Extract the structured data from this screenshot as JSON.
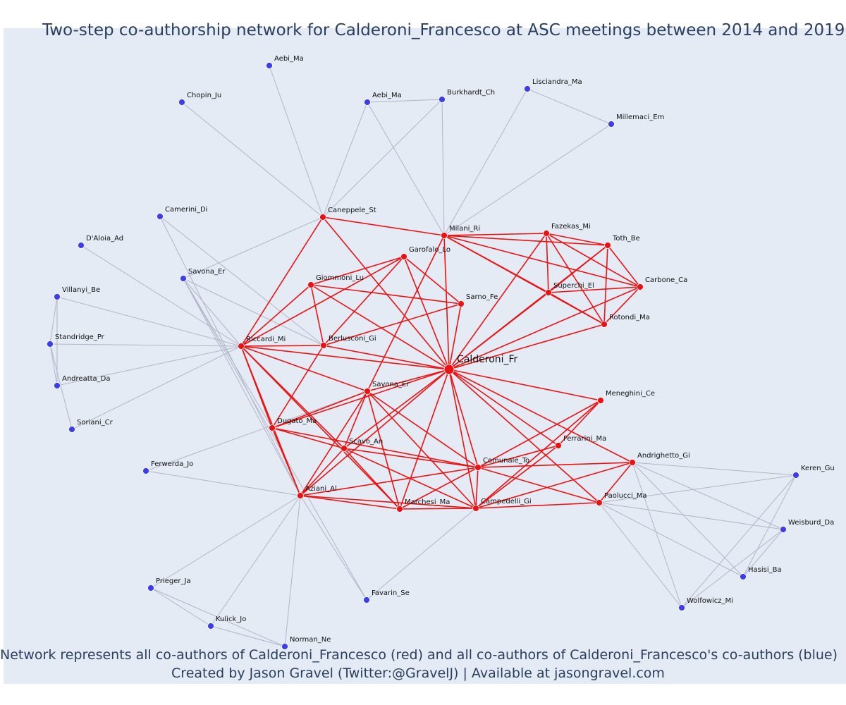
{
  "title": "Two-step co-authorship network for Calderoni_Francesco at ASC meetings between 2014 and 2019",
  "caption_line1": "Network represents all co-authors of Calderoni_Francesco (red) and all co-authors of Calderoni_Francesco's co-authors (blue)",
  "caption_line2": "Created by Jason Gravel (Twitter:@GravelJ) | Available at jasongravel.com",
  "colors": {
    "background": "#e5ebf5",
    "first_degree": "#ee1111",
    "second_degree": "#3c3cf0",
    "first_edge": "#ee1111",
    "second_edge": "#b4b4c8",
    "text": "#2a3f5f"
  },
  "nodes": [
    {
      "id": "Calderoni_Fr",
      "group": "ego"
    },
    {
      "id": "Caneppele_St",
      "group": "red"
    },
    {
      "id": "Milani_Ri",
      "group": "red"
    },
    {
      "id": "Fazekas_Mi",
      "group": "red"
    },
    {
      "id": "Toth_Be",
      "group": "red"
    },
    {
      "id": "Carbone_Ca",
      "group": "red"
    },
    {
      "id": "Superchi_El",
      "group": "red"
    },
    {
      "id": "Rotondi_Ma",
      "group": "red"
    },
    {
      "id": "Garofalo_Lo",
      "group": "red"
    },
    {
      "id": "Giommoni_Lu",
      "group": "red"
    },
    {
      "id": "Sarno_Fe",
      "group": "red"
    },
    {
      "id": "Berlusconi_Gi",
      "group": "red"
    },
    {
      "id": "Riccardi_Mi",
      "group": "red"
    },
    {
      "id": "Savona_Er",
      "group": "red"
    },
    {
      "id": "Dugato_Ma",
      "group": "red"
    },
    {
      "id": "Scavo_An",
      "group": "red"
    },
    {
      "id": "Aziani_Al",
      "group": "red"
    },
    {
      "id": "Marchesi_Ma",
      "group": "red"
    },
    {
      "id": "Campedelli_Gi",
      "group": "red"
    },
    {
      "id": "Comunale_To",
      "group": "red"
    },
    {
      "id": "Ferrarini_Ma",
      "group": "red"
    },
    {
      "id": "Meneghini_Ce",
      "group": "red"
    },
    {
      "id": "Andrighetto_Gi",
      "group": "red"
    },
    {
      "id": "Paolucci_Ma",
      "group": "red"
    },
    {
      "id": "Aebi_Ma",
      "group": "blue",
      "key": "Aebi_Ma_1"
    },
    {
      "id": "Chopin_Ju",
      "group": "blue"
    },
    {
      "id": "Aebi_Ma",
      "group": "blue",
      "key": "Aebi_Ma_2"
    },
    {
      "id": "Burkhardt_Ch",
      "group": "blue"
    },
    {
      "id": "Lisciandra_Ma",
      "group": "blue"
    },
    {
      "id": "Millemaci_Em",
      "group": "blue"
    },
    {
      "id": "Camerini_Di",
      "group": "blue"
    },
    {
      "id": "D'Aloia_Ad",
      "group": "blue"
    },
    {
      "id": "Savona_Er",
      "group": "blue",
      "key": "Savona_Er_b"
    },
    {
      "id": "Villanyi_Be",
      "group": "blue"
    },
    {
      "id": "Standridge_Pr",
      "group": "blue"
    },
    {
      "id": "Andreatta_Da",
      "group": "blue"
    },
    {
      "id": "Soriani_Cr",
      "group": "blue"
    },
    {
      "id": "Ferwerda_Jo",
      "group": "blue"
    },
    {
      "id": "Prieger_Ja",
      "group": "blue"
    },
    {
      "id": "Kulick_Jo",
      "group": "blue"
    },
    {
      "id": "Norman_Ne",
      "group": "blue"
    },
    {
      "id": "Favarin_Se",
      "group": "blue"
    },
    {
      "id": "Keren_Gu",
      "group": "blue"
    },
    {
      "id": "Weisburd_Da",
      "group": "blue"
    },
    {
      "id": "Hasisi_Ba",
      "group": "blue"
    },
    {
      "id": "Wolfowicz_Mi",
      "group": "blue"
    }
  ]
}
